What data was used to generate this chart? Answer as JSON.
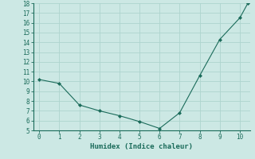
{
  "x": [
    0,
    1,
    2,
    3,
    4,
    5,
    6,
    7,
    8,
    9,
    10,
    10.4
  ],
  "y": [
    10.2,
    9.8,
    7.6,
    7.0,
    6.5,
    5.9,
    5.2,
    6.8,
    10.6,
    14.3,
    16.5,
    18.0
  ],
  "line_color": "#1a6b5a",
  "marker_color": "#1a6b5a",
  "bg_color": "#cce8e4",
  "grid_color": "#aed4ce",
  "xlabel": "Humidex (Indice chaleur)",
  "ylim": [
    5,
    18
  ],
  "xlim": [
    -0.3,
    10.5
  ],
  "yticks": [
    5,
    6,
    7,
    8,
    9,
    10,
    11,
    12,
    13,
    14,
    15,
    16,
    17,
    18
  ],
  "xticks": [
    0,
    1,
    2,
    3,
    4,
    5,
    6,
    7,
    8,
    9,
    10
  ],
  "tick_fontsize": 5.5,
  "xlabel_fontsize": 6.5
}
